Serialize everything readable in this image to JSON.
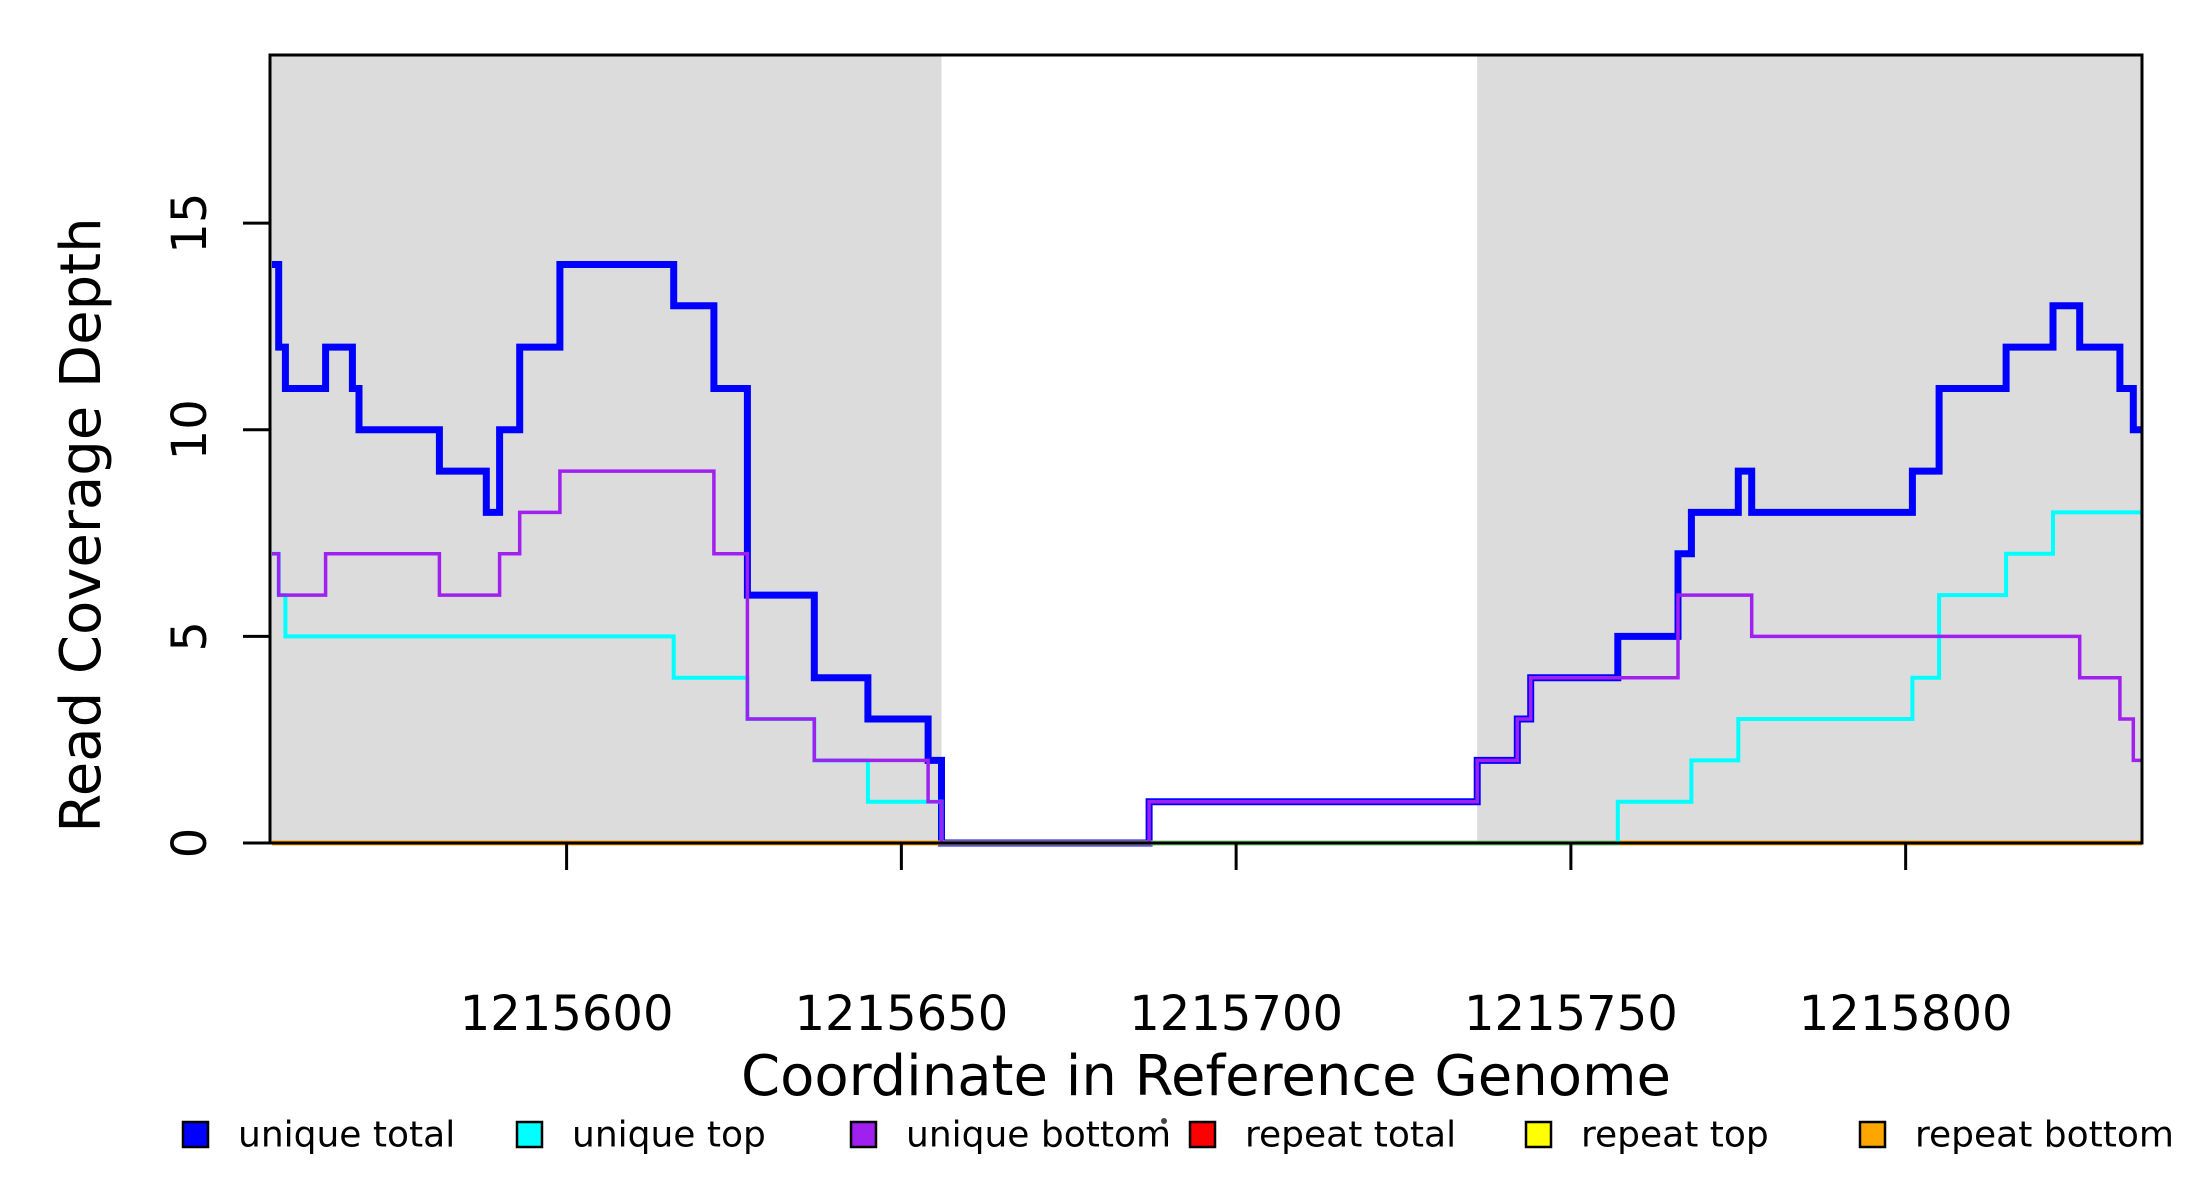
{
  "chart_data": {
    "type": "line",
    "subtype": "step",
    "title": "",
    "xlabel": "Coordinate in Reference Genome",
    "ylabel": "Read Coverage Depth",
    "xlim": [
      1215555.7,
      1215835.3
    ],
    "ylim": [
      0,
      19.07
    ],
    "x_ticks": [
      1215600,
      1215650,
      1215700,
      1215750,
      1215800
    ],
    "y_ticks": [
      0,
      5,
      10,
      15
    ],
    "grid": "off",
    "legend_position": "bottom",
    "shade_color": "#DCDCDC",
    "shaded_regions": [
      [
        1215555.7,
        1215656
      ],
      [
        1215736,
        1215835.3
      ]
    ],
    "series": [
      {
        "name": "unique total",
        "color": "#0000FF",
        "line_width": 7,
        "points": [
          [
            1215556,
            14
          ],
          [
            1215557,
            12
          ],
          [
            1215558,
            11
          ],
          [
            1215564,
            12
          ],
          [
            1215568,
            11
          ],
          [
            1215569,
            10
          ],
          [
            1215581,
            9
          ],
          [
            1215588,
            8
          ],
          [
            1215590,
            10
          ],
          [
            1215593,
            12
          ],
          [
            1215599,
            14
          ],
          [
            1215616,
            13
          ],
          [
            1215622,
            11
          ],
          [
            1215627,
            6
          ],
          [
            1215637,
            4
          ],
          [
            1215645,
            3
          ],
          [
            1215654,
            2
          ],
          [
            1215656,
            0
          ],
          [
            1215687,
            1
          ],
          [
            1215736,
            2
          ],
          [
            1215742,
            3
          ],
          [
            1215744,
            4
          ],
          [
            1215757,
            5
          ],
          [
            1215766,
            7
          ],
          [
            1215768,
            8
          ],
          [
            1215775,
            9
          ],
          [
            1215777,
            8
          ],
          [
            1215801,
            9
          ],
          [
            1215805,
            11
          ],
          [
            1215815,
            12
          ],
          [
            1215822,
            13
          ],
          [
            1215826,
            12
          ],
          [
            1215832,
            11
          ],
          [
            1215834,
            10
          ]
        ]
      },
      {
        "name": "repeat total",
        "color": "#FF0000",
        "line_width": 4,
        "points": [
          [
            1215556,
            0
          ]
        ]
      },
      {
        "name": "repeat top",
        "color": "#FFFF00",
        "line_width": 4,
        "points": [
          [
            1215556,
            0
          ]
        ]
      },
      {
        "name": "repeat bottom",
        "color": "#FFA500",
        "line_width": 5,
        "points": [
          [
            1215556,
            0
          ]
        ]
      },
      {
        "name": "unique top",
        "color": "#00FFFF",
        "line_width": 4,
        "points": [
          [
            1215556,
            7
          ],
          [
            1215557,
            6
          ],
          [
            1215558,
            5
          ],
          [
            1215616,
            4
          ],
          [
            1215627,
            3
          ],
          [
            1215637,
            2
          ],
          [
            1215645,
            1
          ],
          [
            1215656,
            0
          ],
          [
            1215757,
            1
          ],
          [
            1215768,
            2
          ],
          [
            1215775,
            3
          ],
          [
            1215801,
            4
          ],
          [
            1215805,
            6
          ],
          [
            1215815,
            7
          ],
          [
            1215822,
            8
          ]
        ]
      },
      {
        "name": "unique bottom",
        "color": "#A020F0",
        "line_width": 3.5,
        "points": [
          [
            1215556,
            7
          ],
          [
            1215557,
            6
          ],
          [
            1215564,
            7
          ],
          [
            1215581,
            6
          ],
          [
            1215590,
            7
          ],
          [
            1215593,
            8
          ],
          [
            1215599,
            9
          ],
          [
            1215622,
            7
          ],
          [
            1215627,
            3
          ],
          [
            1215637,
            2
          ],
          [
            1215654,
            1
          ],
          [
            1215656,
            0
          ],
          [
            1215687,
            1
          ],
          [
            1215736,
            2
          ],
          [
            1215742,
            3
          ],
          [
            1215744,
            4
          ],
          [
            1215766,
            6
          ],
          [
            1215777,
            5
          ],
          [
            1215826,
            4
          ],
          [
            1215832,
            3
          ],
          [
            1215834,
            2
          ]
        ]
      }
    ],
    "legend": [
      {
        "label": "unique total",
        "color": "#0000FF"
      },
      {
        "label": "unique top",
        "color": "#00FFFF"
      },
      {
        "label": "unique bottom",
        "color": "#A020F0"
      },
      {
        "label": "repeat total",
        "color": "#FF0000"
      },
      {
        "label": "repeat top",
        "color": "#FFFF00"
      },
      {
        "label": "repeat bottom",
        "color": "#FFA500"
      }
    ]
  }
}
